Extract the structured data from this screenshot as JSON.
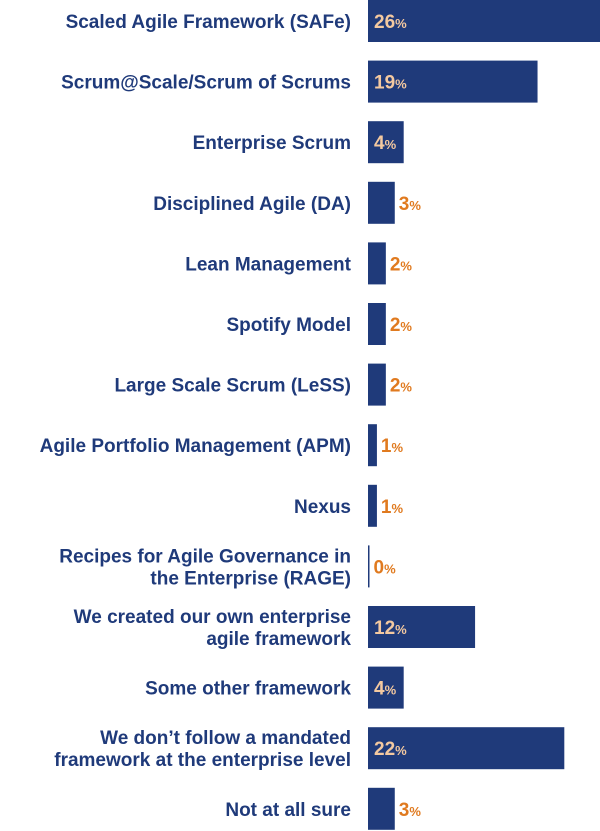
{
  "chart_data": {
    "type": "bar",
    "orientation": "horizontal",
    "categories": [
      [
        "Scaled Agile Framework (SAFe)"
      ],
      [
        "Scrum@Scale/Scrum of Scrums"
      ],
      [
        "Enterprise Scrum"
      ],
      [
        "Disciplined Agile (DA)"
      ],
      [
        "Lean Management"
      ],
      [
        "Spotify Model"
      ],
      [
        "Large Scale Scrum (LeSS)"
      ],
      [
        "Agile Portfolio Management (APM)"
      ],
      [
        "Nexus"
      ],
      [
        "Recipes for Agile Governance in",
        "the Enterprise (RAGE)"
      ],
      [
        "We created our own enterprise",
        "agile framework"
      ],
      [
        "Some other framework"
      ],
      [
        "We don’t follow a mandated",
        "framework at the enterprise level"
      ],
      [
        "Not at all sure"
      ]
    ],
    "values": [
      26,
      19,
      4,
      3,
      2,
      2,
      2,
      1,
      1,
      0,
      12,
      4,
      22,
      3
    ],
    "value_suffix": "%",
    "xlim": [
      0,
      26
    ],
    "colors": {
      "bar": "#1f3a7a",
      "label": "#1f3a7a",
      "value_inside": "#f4c9a0",
      "value_outside": "#e07a1f"
    }
  }
}
